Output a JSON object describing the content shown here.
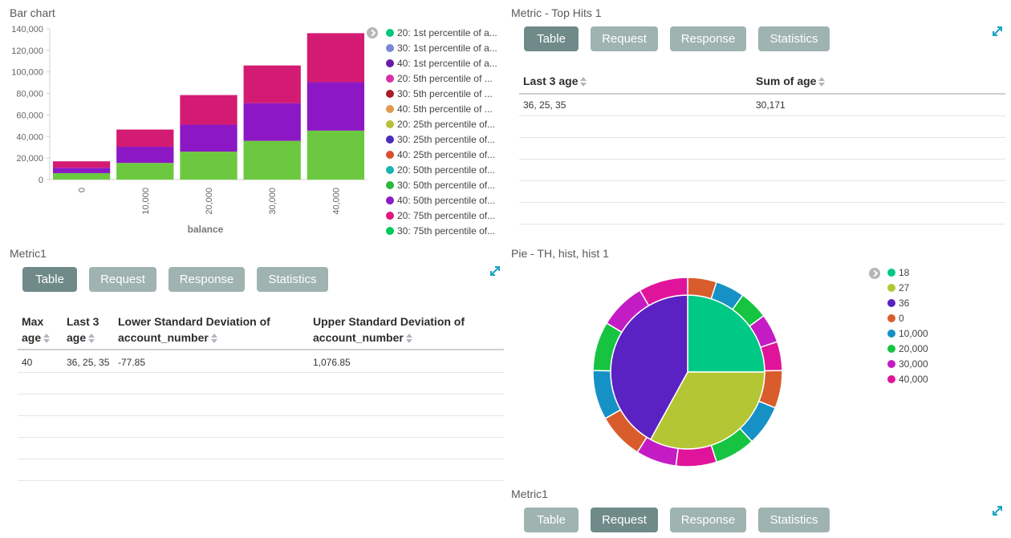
{
  "bar_panel": {
    "title": "Bar chart",
    "legend": [
      {
        "label": "20: 1st percentile of a...",
        "color": "#00c97b"
      },
      {
        "label": "30: 1st percentile of a...",
        "color": "#7b86d4"
      },
      {
        "label": "40: 1st percentile of a...",
        "color": "#6a1aa8"
      },
      {
        "label": "20: 5th percentile of ...",
        "color": "#d630a8"
      },
      {
        "label": "30: 5th percentile of ...",
        "color": "#a81c28"
      },
      {
        "label": "40: 5th percentile of ...",
        "color": "#e09a50"
      },
      {
        "label": "20: 25th percentile of...",
        "color": "#b9bf3a"
      },
      {
        "label": "30: 25th percentile of...",
        "color": "#4a2cc0"
      },
      {
        "label": "40: 25th percentile of...",
        "color": "#d9502f"
      },
      {
        "label": "20: 50th percentile of...",
        "color": "#1ab2b2"
      },
      {
        "label": "30: 50th percentile of...",
        "color": "#2ab83e"
      },
      {
        "label": "40: 50th percentile of...",
        "color": "#8b1cc4"
      },
      {
        "label": "20: 75th percentile of...",
        "color": "#e0157e"
      },
      {
        "label": "30: 75th percentile of...",
        "color": "#00c85a"
      }
    ]
  },
  "chart_data": {
    "type": "bar",
    "title": "Bar chart",
    "xlabel": "balance",
    "ylabel": "",
    "categories": [
      "0",
      "10,000",
      "20,000",
      "30,000",
      "40,000"
    ],
    "series": [
      {
        "name": "green",
        "color": "#6cc93f",
        "values": [
          6000,
          15500,
          26000,
          36000,
          45500
        ]
      },
      {
        "name": "purple",
        "color": "#8b18c4",
        "values": [
          5000,
          15000,
          25000,
          35000,
          45000
        ]
      },
      {
        "name": "pink",
        "color": "#d41b73",
        "values": [
          6000,
          16000,
          27500,
          35000,
          45500
        ]
      }
    ],
    "ylim": [
      0,
      140000
    ],
    "yticks": [
      "0",
      "20,000",
      "40,000",
      "60,000",
      "80,000",
      "100,000",
      "120,000",
      "140,000"
    ]
  },
  "top_hits_panel": {
    "title": "Metric - Top Hits 1",
    "tabs": [
      "Table",
      "Request",
      "Response",
      "Statistics"
    ],
    "headers": [
      "Last 3 age",
      "Sum of age"
    ],
    "row": [
      "36, 25, 35",
      "30,171"
    ]
  },
  "metric1_panel": {
    "title": "Metric1",
    "tabs": [
      "Table",
      "Request",
      "Response",
      "Statistics"
    ],
    "headers": [
      "Max age",
      "Last 3 age",
      "Lower Standard Deviation of account_number",
      "Upper Standard Deviation of account_number"
    ],
    "header_lines": [
      [
        "Max",
        "age"
      ],
      [
        "Last 3",
        "age"
      ],
      [
        "Lower Standard Deviation of",
        "account_number"
      ],
      [
        "Upper Standard Deviation of",
        "account_number"
      ]
    ],
    "row": [
      "40",
      "36, 25, 35",
      "-77.85",
      "1,076.85"
    ]
  },
  "pie_panel": {
    "title": "Pie - TH, hist, hist 1",
    "legend": [
      {
        "label": "18",
        "color": "#00c985"
      },
      {
        "label": "27",
        "color": "#b5c634"
      },
      {
        "label": "36",
        "color": "#5a22c2"
      },
      {
        "label": "0",
        "color": "#d95d2c"
      },
      {
        "label": "10,000",
        "color": "#1591c6"
      },
      {
        "label": "20,000",
        "color": "#17c441"
      },
      {
        "label": "30,000",
        "color": "#c41cc4"
      },
      {
        "label": "40,000",
        "color": "#e0149a"
      }
    ],
    "inner": [
      {
        "label": "18",
        "value": 25,
        "color": "#00c985"
      },
      {
        "label": "27",
        "value": 33,
        "color": "#b5c634"
      },
      {
        "label": "36",
        "value": 42,
        "color": "#5a22c2"
      }
    ],
    "outer": [
      {
        "label": "0",
        "value": 5,
        "color": "#d95d2c"
      },
      {
        "label": "10,000",
        "value": 5,
        "color": "#1591c6"
      },
      {
        "label": "20,000",
        "value": 5,
        "color": "#17c441"
      },
      {
        "label": "30,000",
        "value": 5,
        "color": "#c41cc4"
      },
      {
        "label": "40,000",
        "value": 5,
        "color": "#e0149a"
      },
      {
        "label": "0",
        "value": 6.5,
        "color": "#d95d2c"
      },
      {
        "label": "10,000",
        "value": 7,
        "color": "#1591c6"
      },
      {
        "label": "20,000",
        "value": 7,
        "color": "#17c441"
      },
      {
        "label": "40,000",
        "value": 7,
        "color": "#e0149a"
      },
      {
        "label": "30,000",
        "value": 7,
        "color": "#c41cc4"
      },
      {
        "label": "0",
        "value": 8,
        "color": "#d95d2c"
      },
      {
        "label": "10,000",
        "value": 8.5,
        "color": "#1591c6"
      },
      {
        "label": "20,000",
        "value": 8.5,
        "color": "#17c441"
      },
      {
        "label": "30,000",
        "value": 8,
        "color": "#c41cc4"
      },
      {
        "label": "40,000",
        "value": 8.5,
        "color": "#e0149a"
      }
    ]
  },
  "metric1_bottom_panel": {
    "title": "Metric1",
    "tabs": [
      "Table",
      "Request",
      "Response",
      "Statistics"
    ]
  }
}
